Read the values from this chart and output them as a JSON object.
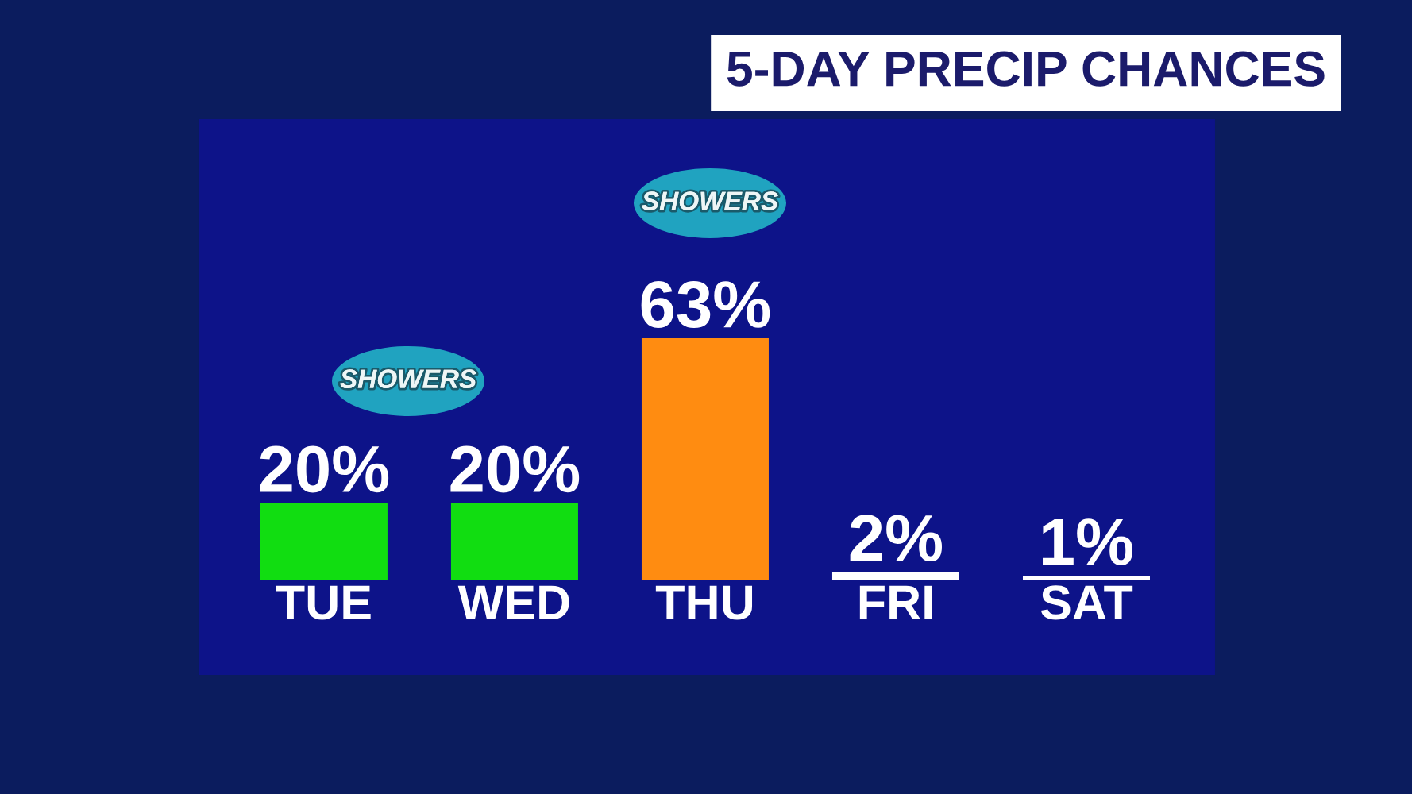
{
  "chart_data": {
    "type": "bar",
    "title": "5-DAY PRECIP CHANCES",
    "categories": [
      "TUE",
      "WED",
      "THU",
      "FRI",
      "SAT"
    ],
    "values": [
      20,
      20,
      63,
      2,
      1
    ],
    "colors": [
      "#11dd11",
      "#11dd11",
      "#ff8c11",
      "#ffffff",
      "#ffffff"
    ],
    "value_labels": [
      "20%",
      "20%",
      "63%",
      "2%",
      "1%"
    ],
    "annotations": [
      "SHOWERS",
      "SHOWERS"
    ],
    "tick_labels": "x"
  }
}
